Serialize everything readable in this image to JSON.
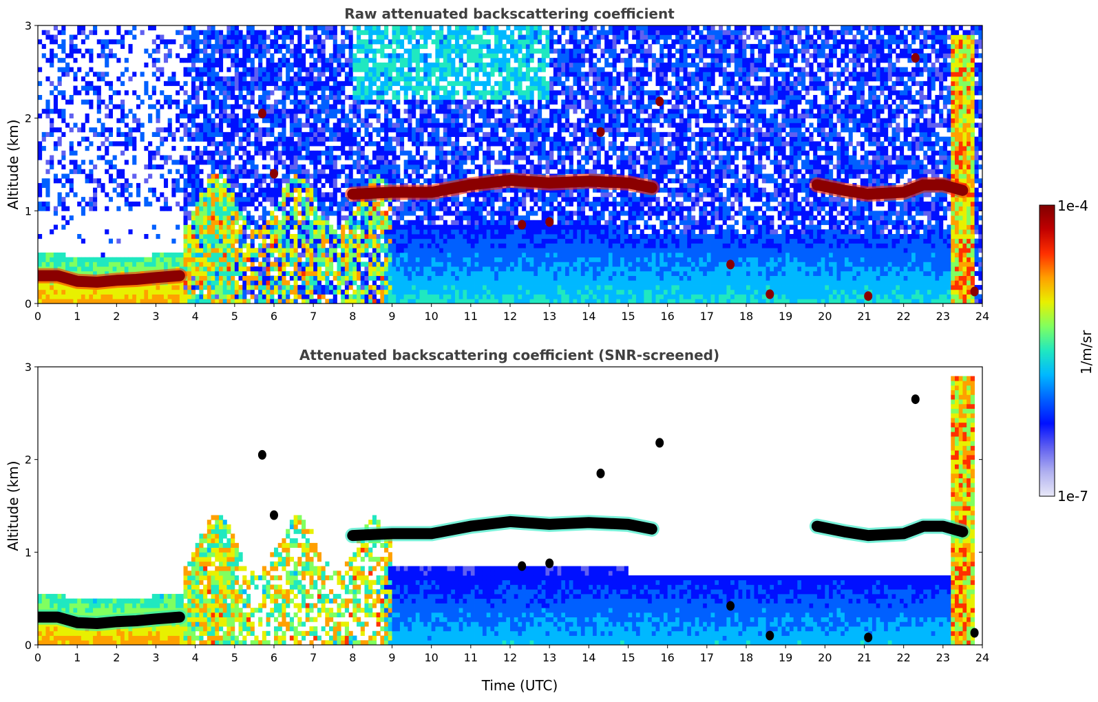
{
  "chart_data": [
    {
      "type": "heatmap",
      "title": "Raw attenuated backscattering coefficient",
      "xlabel": "",
      "ylabel": "Altitude (km)",
      "xlim": [
        0,
        24
      ],
      "ylim": [
        0,
        3
      ],
      "xticks": [
        "0",
        "1",
        "2",
        "3",
        "4",
        "5",
        "6",
        "7",
        "8",
        "9",
        "10",
        "11",
        "12",
        "13",
        "14",
        "15",
        "16",
        "17",
        "18",
        "19",
        "20",
        "21",
        "22",
        "23",
        "24"
      ],
      "yticks": [
        "0",
        "1",
        "2",
        "3"
      ],
      "screened": false
    },
    {
      "type": "heatmap",
      "title": "Attenuated backscattering coefficient (SNR-screened)",
      "xlabel": "Time (UTC)",
      "ylabel": "Altitude (km)",
      "xlim": [
        0,
        24
      ],
      "ylim": [
        0,
        3
      ],
      "xticks": [
        "0",
        "1",
        "2",
        "3",
        "4",
        "5",
        "6",
        "7",
        "8",
        "9",
        "10",
        "11",
        "12",
        "13",
        "14",
        "15",
        "16",
        "17",
        "18",
        "19",
        "20",
        "21",
        "22",
        "23",
        "24"
      ],
      "yticks": [
        "0",
        "1",
        "2",
        "3"
      ],
      "screened": true
    }
  ],
  "colorbar": {
    "label": "1/m/sr",
    "max_label": "1e-4",
    "min_label": "1e-7",
    "colors": [
      "#e8e8f8",
      "#b0b0f0",
      "#6060f0",
      "#0010ff",
      "#0060ff",
      "#00b8ff",
      "#20e8c0",
      "#80ff60",
      "#e8f000",
      "#ffa000",
      "#ff3000",
      "#c00000",
      "#800000"
    ]
  },
  "features": {
    "boundary_layer": [
      [
        0,
        0.3
      ],
      [
        0.5,
        0.3
      ],
      [
        1,
        0.24
      ],
      [
        1.5,
        0.23
      ],
      [
        2,
        0.25
      ],
      [
        2.5,
        0.26
      ],
      [
        3,
        0.28
      ],
      [
        3.6,
        0.3
      ]
    ],
    "cloud_layer": [
      [
        8.0,
        1.18
      ],
      [
        9,
        1.2
      ],
      [
        10,
        1.2
      ],
      [
        11,
        1.28
      ],
      [
        12,
        1.33
      ],
      [
        13,
        1.3
      ],
      [
        14,
        1.32
      ],
      [
        15,
        1.3
      ],
      [
        15.6,
        1.25
      ]
    ],
    "cloud_layer_late": [
      [
        19.8,
        1.28
      ],
      [
        20.5,
        1.22
      ],
      [
        21.1,
        1.18
      ],
      [
        22,
        1.2
      ],
      [
        22.5,
        1.28
      ],
      [
        23,
        1.28
      ],
      [
        23.5,
        1.22
      ]
    ],
    "elevated_blobs": [
      [
        15.8,
        2.18
      ],
      [
        14.3,
        1.85
      ],
      [
        5.7,
        2.05
      ],
      [
        6.0,
        1.4
      ],
      [
        12.3,
        0.85
      ],
      [
        13.0,
        0.88
      ],
      [
        17.6,
        0.42
      ],
      [
        18.6,
        0.1
      ],
      [
        21.1,
        0.08
      ],
      [
        23.8,
        0.13
      ],
      [
        22.3,
        2.65
      ]
    ]
  }
}
